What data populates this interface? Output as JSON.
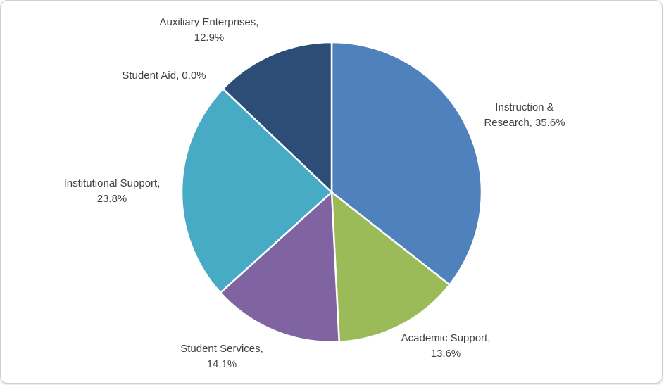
{
  "chart_data": {
    "type": "pie",
    "title": "",
    "categories": [
      "Instruction & Research",
      "Academic Support",
      "Student Services",
      "Institutional Support",
      "Student Aid",
      "Auxiliary Enterprises"
    ],
    "values": [
      35.6,
      13.6,
      14.1,
      23.8,
      0.0,
      12.9
    ],
    "unit": "%",
    "start_angle_deg": 0,
    "direction": "clockwise",
    "legend": "none",
    "label_style": "outside-category-and-percent",
    "label_color": "#404040",
    "slice_border_color": "#FFFFFF",
    "frame_border_color": "#CFCFCF",
    "background_color": "#FFFFFF",
    "slices": [
      {
        "name": "Instruction & Research",
        "value": 35.6,
        "color": "#4F81BD",
        "label_line1": "Instruction &",
        "label_line2": "Research, 35.6%"
      },
      {
        "name": "Academic Support",
        "value": 13.6,
        "color": "#9BBB59",
        "label_line1": "Academic Support,",
        "label_line2": "13.6%"
      },
      {
        "name": "Student Services",
        "value": 14.1,
        "color": "#8064A2",
        "label_line1": "Student Services,",
        "label_line2": "14.1%"
      },
      {
        "name": "Institutional Support",
        "value": 23.8,
        "color": "#47ABC5",
        "label_line1": "Institutional Support,",
        "label_line2": "23.8%"
      },
      {
        "name": "Student Aid",
        "value": 0.0,
        "color": null,
        "label_line1": "Student Aid, 0.0%",
        "label_line2": ""
      },
      {
        "name": "Auxiliary Enterprises",
        "value": 12.9,
        "color": "#2C4D76",
        "label_line1": "Auxiliary Enterprises,",
        "label_line2": "12.9%"
      }
    ]
  }
}
